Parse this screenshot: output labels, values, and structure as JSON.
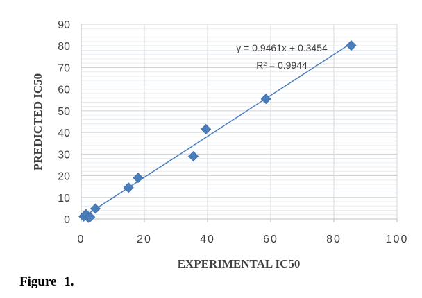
{
  "chart_data": {
    "type": "scatter",
    "xlabel": "EXPERIMENTAL IC50",
    "ylabel": "PREDICTED IC50",
    "xlim": [
      0,
      100
    ],
    "ylim": [
      0,
      90
    ],
    "x_ticks": [
      "0",
      "20",
      "40",
      "60",
      "80",
      "100"
    ],
    "y_ticks": [
      "0",
      "10",
      "20",
      "30",
      "40",
      "50",
      "60",
      "70",
      "80",
      "90"
    ],
    "points": [
      {
        "x": 0.8,
        "y": 1.2
      },
      {
        "x": 1.5,
        "y": 2.2
      },
      {
        "x": 2.3,
        "y": 0.6
      },
      {
        "x": 2.8,
        "y": 0.9
      },
      {
        "x": 4.5,
        "y": 4.8
      },
      {
        "x": 15.0,
        "y": 14.5
      },
      {
        "x": 18.0,
        "y": 19.0
      },
      {
        "x": 35.5,
        "y": 29.0
      },
      {
        "x": 39.5,
        "y": 41.5
      },
      {
        "x": 58.5,
        "y": 55.5
      },
      {
        "x": 85.5,
        "y": 80.2
      }
    ],
    "trendline": {
      "slope": 0.9461,
      "intercept": 0.3454,
      "x_range": [
        0,
        85.5
      ]
    },
    "equation_label": "y = 0.9461x + 0.3454",
    "r2_label": "R² = 0.9944",
    "grid": true,
    "marker_color": "#4a7ebb",
    "line_color": "#4a7ebb",
    "grid_color": "#d9d9d9"
  },
  "caption": "Figure 1."
}
